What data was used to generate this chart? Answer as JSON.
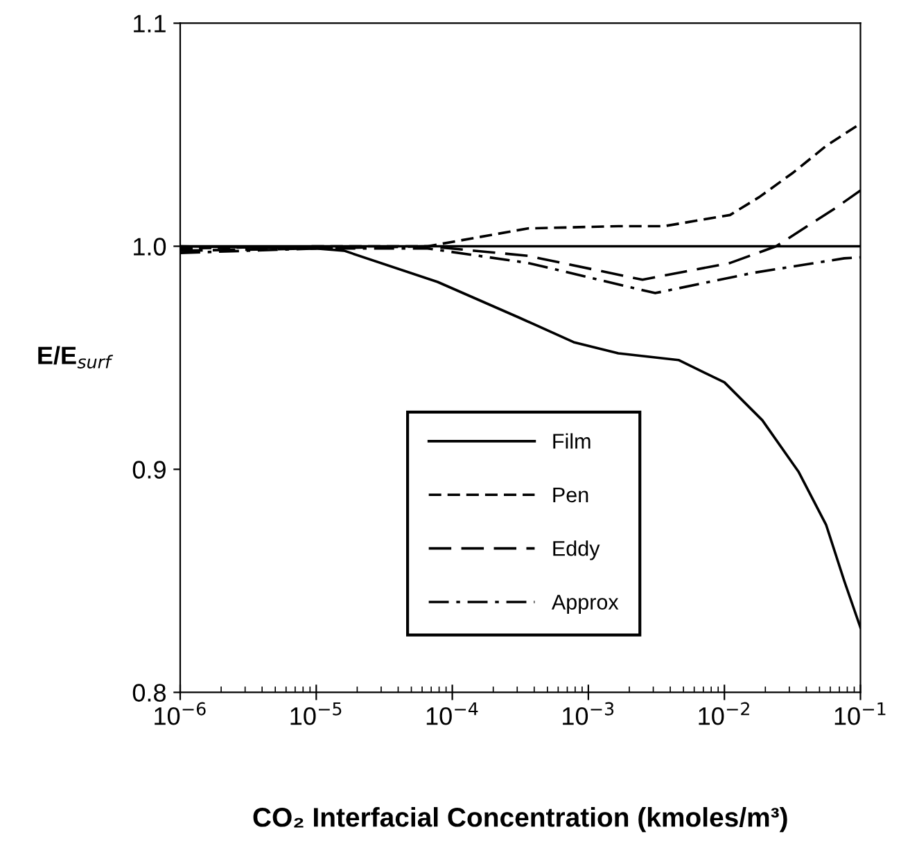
{
  "chart_data": {
    "type": "line",
    "xlabel": "CO₂ Interfacial Concentration (kmoles/m³)",
    "ylabel": "E/E$_{surf}$",
    "log": "x",
    "xlim": [
      1e-06,
      0.1
    ],
    "xticks": [
      {
        "value": 1e-06,
        "label": "10$^{−6}$"
      },
      {
        "value": 1e-05,
        "label": "10$^{−5}$"
      },
      {
        "value": 0.0001,
        "label": "10$^{−4}$"
      },
      {
        "value": 0.001,
        "label": "10$^{−3}$"
      },
      {
        "value": 0.01,
        "label": "10$^{−2}$"
      },
      {
        "value": 0.1,
        "label": "10$^{−1}$"
      }
    ],
    "ylim": [
      0.8,
      1.1
    ],
    "yticks": [
      0.8,
      0.9,
      {
        "value": 1.0,
        "label": "1.0"
      },
      1.1
    ],
    "grid": false,
    "legend": "bottom",
    "marker": "none",
    "ref_lines": [
      {
        "axis": "y",
        "value": 1.0,
        "color": "#000000"
      }
    ],
    "series": [
      {
        "name": "Film",
        "color": "#000000",
        "line_style": "solid",
        "x": [
          1e-06,
          1e-05,
          1.6e-05,
          7.8e-05,
          0.00031,
          0.00078,
          0.00166,
          0.0046,
          0.01,
          0.019,
          0.035,
          0.056,
          0.076,
          0.1
        ],
        "values": [
          1.0,
          0.999,
          0.998,
          0.984,
          0.968,
          0.957,
          0.952,
          0.949,
          0.939,
          0.922,
          0.899,
          0.875,
          0.85,
          0.829
        ]
      },
      {
        "name": "Pen",
        "color": "#000000",
        "line_style": "dashed",
        "x": [
          1e-06,
          1e-05,
          6.6e-05,
          0.00036,
          0.00166,
          0.0036,
          0.011,
          0.018,
          0.032,
          0.056,
          0.1
        ],
        "values": [
          0.999,
          1.0,
          1.0,
          1.008,
          1.009,
          1.009,
          1.014,
          1.022,
          1.033,
          1.045,
          1.055
        ]
      },
      {
        "name": "Eddy",
        "color": "#000000",
        "line_style": "longdash",
        "x": [
          1e-06,
          1e-05,
          6.6e-05,
          0.00036,
          0.0025,
          0.011,
          0.024,
          0.065,
          0.1
        ],
        "values": [
          0.998,
          0.999,
          1.0,
          0.9957,
          0.985,
          0.9925,
          1.0,
          1.017,
          1.025
        ]
      },
      {
        "name": "Approx",
        "color": "#000000",
        "line_style": "dashdot",
        "x": [
          1e-06,
          1e-05,
          6.6e-05,
          0.00036,
          0.0031,
          0.016,
          0.076,
          0.1
        ],
        "values": [
          0.997,
          0.999,
          0.999,
          0.9925,
          0.979,
          0.988,
          0.9946,
          0.995
        ]
      }
    ]
  }
}
